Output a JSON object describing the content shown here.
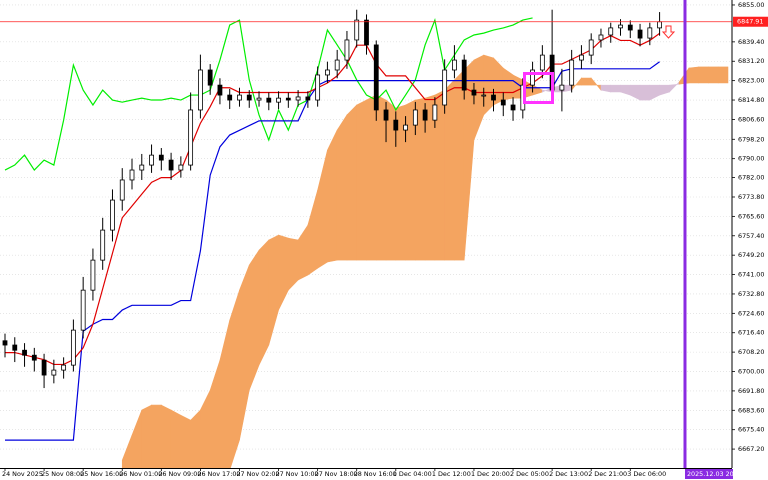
{
  "chart_data": {
    "type": "candlestick",
    "ylim": [
      6659.2,
      6857.1
    ],
    "yticks": [
      {
        "value": 6855,
        "label": "6855.00"
      },
      {
        "value": 6839.4,
        "label": "6839.40"
      },
      {
        "value": 6831.2,
        "label": "6831.20"
      },
      {
        "value": 6823,
        "label": "6823.00"
      },
      {
        "value": 6814.8,
        "label": "6814.80"
      },
      {
        "value": 6806.6,
        "label": "6806.60"
      },
      {
        "value": 6798.2,
        "label": "6798.20"
      },
      {
        "value": 6790,
        "label": "6790.00"
      },
      {
        "value": 6782,
        "label": "6782.00"
      },
      {
        "value": 6773.8,
        "label": "6773.80"
      },
      {
        "value": 6765.6,
        "label": "6765.60"
      },
      {
        "value": 6757.4,
        "label": "6757.40"
      },
      {
        "value": 6749.2,
        "label": "6749.20"
      },
      {
        "value": 6741,
        "label": "6741.00"
      },
      {
        "value": 6732.8,
        "label": "6732.80"
      },
      {
        "value": 6724.6,
        "label": "6724.60"
      },
      {
        "value": 6716.4,
        "label": "6716.40"
      },
      {
        "value": 6708.2,
        "label": "6708.20"
      },
      {
        "value": 6700,
        "label": "6700.00"
      },
      {
        "value": 6691.8,
        "label": "6691.80"
      },
      {
        "value": 6683.6,
        "label": "6683.60"
      },
      {
        "value": 6675.4,
        "label": "6675.40"
      },
      {
        "value": 6667.2,
        "label": "6667.20"
      }
    ],
    "grid": true,
    "categories": [
      "24 Nov 2025",
      null,
      null,
      null,
      "25 Nov 08:00",
      null,
      null,
      null,
      "25 Nov 16:00",
      null,
      null,
      null,
      "26 Nov 01:00",
      null,
      null,
      null,
      "26 Nov 09:00",
      null,
      null,
      null,
      "26 Nov 17:00",
      null,
      null,
      null,
      "27 Nov 02:00",
      null,
      null,
      null,
      "27 Nov 10:00",
      null,
      null,
      null,
      "27 Nov 18:00",
      null,
      null,
      null,
      "28 Nov 16:00",
      null,
      null,
      null,
      "1 Dec 04:00",
      null,
      null,
      null,
      "1 Dec 12:00",
      null,
      null,
      null,
      "1 Dec 20:00",
      null,
      null,
      null,
      "2 Dec 05:00",
      null,
      null,
      null,
      "2 Dec 13:00",
      null,
      null,
      null,
      "2 Dec 21:00",
      null,
      null,
      null,
      "3 Dec 06:00",
      null,
      null,
      null,
      null,
      null,
      null,
      null,
      null,
      null,
      null
    ],
    "candles": {
      "bull_color": "#ffffff",
      "bear_color": "#000000",
      "outline": "#000000",
      "open": [
        6713.0,
        6711.2,
        6709.0,
        6706.9,
        6704.8,
        6698.5,
        6700.6,
        6702.7,
        6717.5,
        6734.4,
        6747.1,
        6759.8,
        6772.5,
        6781.0,
        6785.2,
        6787.3,
        6791.5,
        6789.4,
        6785.2,
        6787.3,
        6810.6,
        6827.5,
        6821.1,
        6816.9,
        6814.8,
        6816.9,
        6814.8,
        6815.6,
        6813.9,
        6815.6,
        6814.8,
        6816.1,
        6814.8,
        6825.4,
        6827.5,
        6831.7,
        6840.2,
        6848.6,
        6838.1,
        6810.6,
        6806.3,
        6802.1,
        6804.2,
        6810.6,
        6806.3,
        6812.7,
        6827.5,
        6831.7,
        6819.0,
        6816.9,
        6816.9,
        6814.8,
        6812.7,
        6810.6,
        6821.1,
        6827.5,
        6833.8,
        6819.0,
        6821.1,
        6831.7,
        6833.8,
        6840.2,
        6842.3,
        6845.3,
        6846.5,
        6844.4,
        6841.0,
        6845.3,
        null,
        null,
        null,
        null,
        null,
        null,
        null
      ],
      "high": [
        6716.0,
        6714.5,
        6712.0,
        6710.0,
        6707.5,
        6705.0,
        6706.0,
        6722.0,
        6740.0,
        6752.0,
        6765.0,
        6777.0,
        6786.0,
        6790.0,
        6792.0,
        6796.0,
        6794.5,
        6792.5,
        6791.0,
        6818.0,
        6834.0,
        6830.0,
        6824.0,
        6819.5,
        6820.0,
        6819.0,
        6818.5,
        6818.0,
        6818.5,
        6818.0,
        6819.0,
        6818.5,
        6829.0,
        6831.0,
        6836.0,
        6844.0,
        6853.0,
        6851.0,
        6840.0,
        6814.0,
        6810.0,
        6808.0,
        6814.0,
        6813.5,
        6816.0,
        6832.0,
        6838.0,
        6834.0,
        6822.0,
        6820.0,
        6819.5,
        6818.0,
        6816.0,
        6824.0,
        6831.0,
        6838.0,
        6853.0,
        6828.0,
        6836.0,
        6838.0,
        6843.0,
        6845.0,
        6847.5,
        6849.0,
        6848.5,
        6847.0,
        6847.5,
        6852.0,
        null,
        null,
        null,
        null,
        null,
        null,
        null
      ],
      "low": [
        6706.0,
        6704.0,
        6702.0,
        6700.0,
        6693.0,
        6695.0,
        6697.0,
        6700.0,
        6714.0,
        6730.0,
        6743.0,
        6755.0,
        6768.0,
        6777.0,
        6781.0,
        6784.0,
        6785.0,
        6781.0,
        6782.0,
        6785.0,
        6807.0,
        6817.0,
        6813.0,
        6811.0,
        6812.0,
        6811.5,
        6812.0,
        6810.5,
        6811.0,
        6811.5,
        6812.0,
        6811.5,
        6812.0,
        6822.0,
        6824.0,
        6828.0,
        6837.0,
        6834.0,
        6806.0,
        6797.0,
        6795.0,
        6797.0,
        6800.0,
        6801.0,
        6803.0,
        6809.0,
        6824.0,
        6815.0,
        6813.0,
        6812.0,
        6810.0,
        6808.0,
        6806.0,
        6807.0,
        6818.0,
        6824.0,
        6815.0,
        6810.0,
        6818.0,
        6828.0,
        6830.0,
        6837.0,
        6839.0,
        6842.0,
        6841.0,
        6837.5,
        6838.0,
        6842.0,
        null,
        null,
        null,
        null,
        null,
        null,
        null
      ],
      "close": [
        6711.2,
        6709.0,
        6706.9,
        6704.8,
        6698.5,
        6700.6,
        6702.7,
        6717.5,
        6734.4,
        6747.1,
        6759.8,
        6772.5,
        6781.0,
        6785.2,
        6787.3,
        6791.5,
        6789.4,
        6785.2,
        6787.3,
        6810.6,
        6827.5,
        6821.1,
        6816.9,
        6814.8,
        6816.9,
        6814.8,
        6815.6,
        6813.9,
        6815.6,
        6814.8,
        6816.1,
        6814.8,
        6825.4,
        6827.5,
        6831.7,
        6840.2,
        6848.6,
        6838.1,
        6810.6,
        6806.3,
        6802.1,
        6804.2,
        6810.6,
        6806.3,
        6812.7,
        6827.5,
        6831.7,
        6819.0,
        6816.9,
        6816.9,
        6814.8,
        6812.7,
        6810.6,
        6821.1,
        6827.5,
        6833.8,
        6819.0,
        6821.1,
        6831.7,
        6833.8,
        6840.2,
        6842.3,
        6845.3,
        6846.5,
        6844.4,
        6841.0,
        6845.3,
        6847.9,
        null,
        null,
        null,
        null,
        null,
        null,
        null
      ]
    },
    "lines": [
      {
        "color": "#00ee00",
        "values": [
          6785.2,
          6787.3,
          6791.5,
          6785.2,
          6789.4,
          6787.3,
          6806.3,
          6829.6,
          6819.0,
          6812.7,
          6819.0,
          6814.8,
          6813.9,
          6814.8,
          6815.6,
          6814.8,
          6814.8,
          6815.6,
          6814.8,
          6816.9,
          6816.9,
          6819.0,
          6831.7,
          6846.5,
          6848.6,
          6823.3,
          6808.5,
          6797.9,
          6810.6,
          6802.1,
          6812.7,
          6814.8,
          6827.5,
          6844.4,
          6838.1,
          6831.7,
          6823.3,
          6816.9,
          6814.8,
          6819.0,
          6810.6,
          6816.9,
          6823.3,
          6838.1,
          6848.6,
          6827.5,
          6833.8,
          6840.2,
          6842.3,
          6843.1,
          6844.4,
          6845.3,
          6846.5,
          6848.6,
          6849.5,
          null,
          null,
          null,
          null,
          null,
          null,
          null,
          null,
          null,
          null,
          null,
          null,
          null,
          null,
          null,
          null,
          null,
          null,
          null,
          null
        ]
      },
      {
        "color": "#0000dd",
        "values": [
          6671,
          6671,
          6671,
          6671,
          6671,
          6671,
          6671,
          6671,
          6717,
          6720,
          6722,
          6722,
          6726,
          6728,
          6728,
          6728,
          6728,
          6728,
          6730,
          6730,
          6751,
          6783,
          6795,
          6800,
          6802,
          6804,
          6806,
          6806,
          6806,
          6806,
          6806,
          6815,
          6821,
          6823,
          6823,
          6823,
          6823,
          6823,
          6823,
          6823,
          6823,
          6823,
          6823,
          6823,
          6823,
          6823,
          6823,
          6823,
          6823,
          6823,
          6823,
          6823,
          6823,
          6820,
          6820,
          6820,
          6820,
          6827,
          6828,
          6828,
          6828,
          6828,
          6828,
          6828,
          6828,
          6828,
          6828,
          6831,
          null,
          null,
          null,
          null,
          null,
          null,
          null
        ]
      },
      {
        "color": "#e00000",
        "values": [
          6708,
          6708,
          6707,
          6706,
          6705,
          6703,
          6703,
          6705,
          6710,
          6720,
          6735,
          6750,
          6765,
          6770,
          6775,
          6780,
          6782,
          6782,
          6785,
          6795,
          6805,
          6812,
          6820,
          6820,
          6818,
          6818,
          6818,
          6818,
          6818,
          6818,
          6818,
          6818,
          6820,
          6822,
          6825,
          6830,
          6838,
          6838,
          6830,
          6825,
          6825,
          6825,
          6820,
          6815,
          6815,
          6818,
          6820,
          6820,
          6818,
          6818,
          6818,
          6818,
          6818,
          6820,
          6822,
          6825,
          6830,
          6830,
          6832,
          6834,
          6836,
          6840,
          6842,
          6840,
          6840,
          6838,
          6840,
          6843,
          null,
          null,
          null,
          null,
          null,
          null,
          null
        ]
      }
    ],
    "cloud": {
      "up_color": "#f4a460",
      "down_color": "#d8bfd8",
      "span_a": [
        null,
        null,
        null,
        null,
        null,
        null,
        null,
        null,
        null,
        null,
        null,
        null,
        6662.5,
        6673.1,
        6683.7,
        6685.8,
        6685.8,
        6683.7,
        6681.5,
        6679.4,
        6683.7,
        6692.1,
        6704.8,
        6721.7,
        6734.4,
        6745.0,
        6751.3,
        6755.6,
        6757.7,
        6756.4,
        6755.6,
        6761.9,
        6776.7,
        6793.6,
        6802.1,
        6808.5,
        6812.7,
        6814.8,
        6816.9,
        6814.8,
        6811.4,
        6812.7,
        6814.8,
        6815.6,
        6816.9,
        6819.0,
        6823.3,
        6827.5,
        6831.7,
        6833.8,
        6832.6,
        6828.3,
        6825.4,
        6823.3,
        6821.1,
        6819.0,
        6818.2,
        6818.2,
        6819.0,
        6824.1,
        6824.1,
        6819.0,
        6818.2,
        6818.2,
        6816.9,
        6814.8,
        6814.8,
        6816.9,
        6818.2,
        6822.4,
        6828.3,
        6828.8,
        6828.8,
        6828.8,
        6828.8
      ],
      "span_b": [
        null,
        null,
        null,
        null,
        null,
        null,
        null,
        null,
        null,
        null,
        null,
        null,
        null,
        null,
        null,
        null,
        null,
        null,
        null,
        null,
        null,
        null,
        null,
        6658.3,
        6671.0,
        6692.1,
        6702.7,
        6711.2,
        6726.0,
        6734.4,
        6738.7,
        6740.8,
        6743.7,
        6746.3,
        6747.1,
        6747.1,
        6747.1,
        6747.1,
        6747.1,
        6747.1,
        6747.1,
        6747.1,
        6747.1,
        6747.1,
        6747.1,
        6747.1,
        6747.1,
        6747.1,
        6797.9,
        6808.5,
        6812.7,
        6814.8,
        6815.6,
        6815.6,
        6816.9,
        6818.2,
        6820.0,
        6821.1,
        6821.1,
        6821.1,
        6821.1,
        6821.1,
        6821.1,
        6821.1,
        6821.1,
        6821.1,
        6821.1,
        6821.1,
        6821.1,
        6821.5,
        6822.0,
        6822.0,
        6822.0,
        6822.0,
        6822.0
      ]
    },
    "last_price": 6847.91,
    "last_price_color": "#ff2020",
    "vline": {
      "x": 69.6,
      "label": "2025.12.03 20:00",
      "color": "#8a2be2"
    }
  }
}
